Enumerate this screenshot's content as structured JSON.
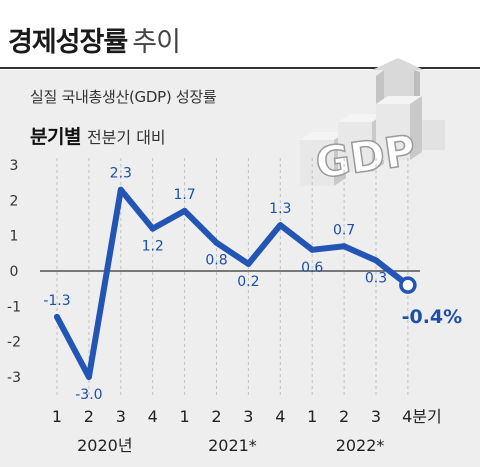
{
  "title": {
    "main": "경제성장률",
    "sub": "추이"
  },
  "subtitle": "실질 국내총생산(GDP) 성장률",
  "basis": {
    "bold": "분기별",
    "normal": "전분기 대비"
  },
  "decoration": {
    "text": "GDP",
    "icon": "gdp-3d-arrow-icon"
  },
  "colors": {
    "line": "#2255b4",
    "label": "#1e4fa8",
    "background": "#eeeeee",
    "zero_line": "#333333"
  },
  "chart_data": {
    "type": "line",
    "categories": [
      "1",
      "2",
      "3",
      "4",
      "1",
      "2",
      "3",
      "4",
      "1",
      "2",
      "3",
      "4분기"
    ],
    "year_labels": [
      "2020년",
      "2021*",
      "2022*"
    ],
    "values": [
      -1.3,
      -3.0,
      2.3,
      1.2,
      1.7,
      0.8,
      0.2,
      1.3,
      0.6,
      0.7,
      0.3,
      -0.4
    ],
    "value_labels": [
      "-1.3",
      "-3.0",
      "2.3",
      "1.2",
      "1.7",
      "0.8",
      "0.2",
      "1.3",
      "0.6",
      "0.7",
      "0.3",
      "-0.4%"
    ],
    "ylim": [
      -3,
      3
    ],
    "yticks": [
      "3",
      "2",
      "1",
      "0",
      "-1",
      "-2",
      "-3"
    ],
    "grid": "vertical dashed",
    "xlabel": "",
    "ylabel": ""
  }
}
